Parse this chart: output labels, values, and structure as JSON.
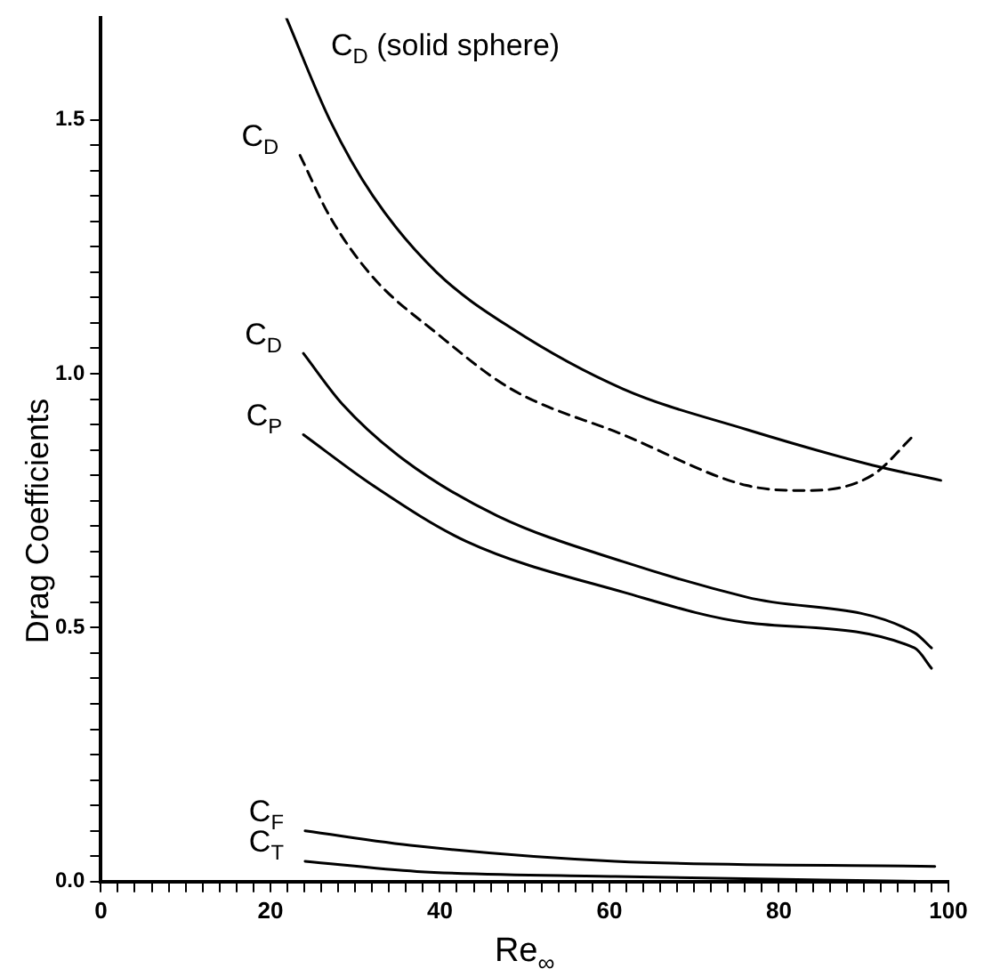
{
  "chart_data": {
    "type": "line",
    "xlabel": "Re$_{∞}$",
    "ylabel": "Drag Coefficients",
    "xlim": [
      0,
      100
    ],
    "ylim": [
      0,
      1.7
    ],
    "xticks": [
      0,
      {
        "value": 2,
        "label": null
      },
      {
        "value": 4,
        "label": null
      },
      {
        "value": 6,
        "label": null
      },
      {
        "value": 8,
        "label": null
      },
      {
        "value": 10,
        "label": null
      },
      {
        "value": 12,
        "label": null
      },
      {
        "value": 14,
        "label": null
      },
      {
        "value": 16,
        "label": null
      },
      {
        "value": 18,
        "label": null
      },
      20,
      {
        "value": 22,
        "label": null
      },
      {
        "value": 24,
        "label": null
      },
      {
        "value": 26,
        "label": null
      },
      {
        "value": 28,
        "label": null
      },
      {
        "value": 30,
        "label": null
      },
      {
        "value": 32,
        "label": null
      },
      {
        "value": 34,
        "label": null
      },
      {
        "value": 36,
        "label": null
      },
      {
        "value": 38,
        "label": null
      },
      40,
      {
        "value": 42,
        "label": null
      },
      {
        "value": 44,
        "label": null
      },
      {
        "value": 46,
        "label": null
      },
      {
        "value": 48,
        "label": null
      },
      {
        "value": 50,
        "label": null
      },
      {
        "value": 52,
        "label": null
      },
      {
        "value": 54,
        "label": null
      },
      {
        "value": 56,
        "label": null
      },
      {
        "value": 58,
        "label": null
      },
      60,
      {
        "value": 62,
        "label": null
      },
      {
        "value": 64,
        "label": null
      },
      {
        "value": 66,
        "label": null
      },
      {
        "value": 68,
        "label": null
      },
      {
        "value": 70,
        "label": null
      },
      {
        "value": 72,
        "label": null
      },
      {
        "value": 74,
        "label": null
      },
      {
        "value": 76,
        "label": null
      },
      {
        "value": 78,
        "label": null
      },
      80,
      {
        "value": 82,
        "label": null
      },
      {
        "value": 84,
        "label": null
      },
      {
        "value": 86,
        "label": null
      },
      {
        "value": 88,
        "label": null
      },
      {
        "value": 90,
        "label": null
      },
      {
        "value": 92,
        "label": null
      },
      {
        "value": 94,
        "label": null
      },
      {
        "value": 96,
        "label": null
      },
      {
        "value": 98,
        "label": null
      },
      100
    ],
    "yticks": [
      {
        "value": 0,
        "label": "0.0"
      },
      {
        "value": 0.05,
        "label": null
      },
      {
        "value": 0.1,
        "label": null
      },
      {
        "value": 0.15,
        "label": null
      },
      {
        "value": 0.2,
        "label": null
      },
      {
        "value": 0.25,
        "label": null
      },
      {
        "value": 0.3,
        "label": null
      },
      {
        "value": 0.35,
        "label": null
      },
      {
        "value": 0.4,
        "label": null
      },
      {
        "value": 0.45,
        "label": null
      },
      {
        "value": 0.5,
        "label": "0.5"
      },
      {
        "value": 0.55,
        "label": null
      },
      {
        "value": 0.6,
        "label": null
      },
      {
        "value": 0.65,
        "label": null
      },
      {
        "value": 0.7,
        "label": null
      },
      {
        "value": 0.75,
        "label": null
      },
      {
        "value": 0.8,
        "label": null
      },
      {
        "value": 0.85,
        "label": null
      },
      {
        "value": 0.9,
        "label": null
      },
      {
        "value": 0.95,
        "label": null
      },
      {
        "value": 1,
        "label": "1.0"
      },
      {
        "value": 1.05,
        "label": null
      },
      {
        "value": 1.1,
        "label": null
      },
      {
        "value": 1.15,
        "label": null
      },
      {
        "value": 1.2,
        "label": null
      },
      {
        "value": 1.25,
        "label": null
      },
      {
        "value": 1.3,
        "label": null
      },
      {
        "value": 1.35,
        "label": null
      },
      {
        "value": 1.4,
        "label": null
      },
      {
        "value": 1.45,
        "label": null
      },
      {
        "value": 1.5,
        "label": "1.5"
      }
    ],
    "grid": false,
    "legend": false,
    "series": [
      {
        "name": "C$_{D}$ (solid sphere)",
        "color": "#000000",
        "line_style": "solid",
        "x": [
          21.9,
          27.0,
          32.1,
          39.6,
          48.4,
          61.6,
          76.2,
          91.0,
          99.1
        ],
        "values": [
          1.7,
          1.5,
          1.35,
          1.2,
          1.09,
          0.97,
          0.89,
          0.82,
          0.79
        ]
      },
      {
        "name": "C$_{D}$",
        "color": "#000000",
        "line_style": "dashed",
        "x": [
          23.5,
          27.0,
          32.1,
          39.6,
          48.4,
          61.6,
          76.2,
          83.6,
          91.0,
          96.0
        ],
        "values": [
          1.43,
          1.31,
          1.19,
          1.08,
          0.97,
          0.88,
          0.78,
          0.77,
          0.8,
          0.88
        ]
      },
      {
        "name": "C$_{D}$",
        "color": "#000000",
        "line_style": "solid",
        "x": [
          23.9,
          28.5,
          35.8,
          46.8,
          61.6,
          76.2,
          96.0,
          98.0
        ],
        "values": [
          1.04,
          0.94,
          0.83,
          0.72,
          0.63,
          0.56,
          0.49,
          0.46
        ]
      },
      {
        "name": "C$_{P}$",
        "color": "#000000",
        "line_style": "solid",
        "x": [
          23.9,
          32.1,
          43.1,
          61.6,
          76.2,
          96.0,
          98.0
        ],
        "values": [
          0.88,
          0.78,
          0.67,
          0.57,
          0.51,
          0.46,
          0.42
        ]
      },
      {
        "name": "C$_{F}$",
        "color": "#000000",
        "line_style": "solid",
        "x": [
          24.1,
          37.3,
          60.7,
          98.4
        ],
        "values": [
          0.1,
          0.07,
          0.04,
          0.03
        ]
      },
      {
        "name": "C$_{T}$",
        "color": "#000000",
        "line_style": "solid",
        "x": [
          24.1,
          37.3,
          60.7,
          98.4
        ],
        "values": [
          0.04,
          0.02,
          0.01,
          0.0
        ]
      }
    ]
  }
}
